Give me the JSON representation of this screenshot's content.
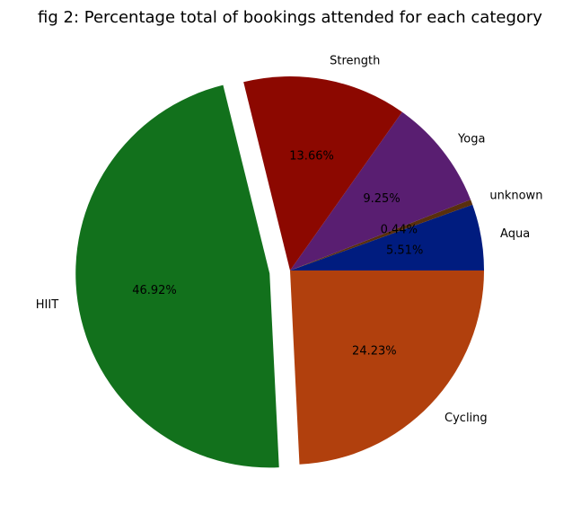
{
  "chart_data": {
    "type": "pie",
    "title": "fig 2: Percentage total of bookings attended for each category",
    "slices": [
      {
        "label": "Aqua",
        "value": 5.51,
        "pct_label": "5.51%",
        "color": "#001c7f"
      },
      {
        "label": "unknown",
        "value": 0.44,
        "pct_label": "0.44%",
        "color": "#592f0d"
      },
      {
        "label": "Yoga",
        "value": 9.25,
        "pct_label": "9.25%",
        "color": "#591e71"
      },
      {
        "label": "Strength",
        "value": 13.66,
        "pct_label": "13.66%",
        "color": "#8c0800"
      },
      {
        "label": "HIIT",
        "value": 46.92,
        "pct_label": "46.92%",
        "color": "#12711c"
      },
      {
        "label": "Cycling",
        "value": 24.23,
        "pct_label": "24.23%",
        "color": "#b1400d"
      }
    ],
    "exploded": "HIIT",
    "start_angle_deg": 0,
    "direction": "counterclockwise",
    "legend": "none"
  }
}
